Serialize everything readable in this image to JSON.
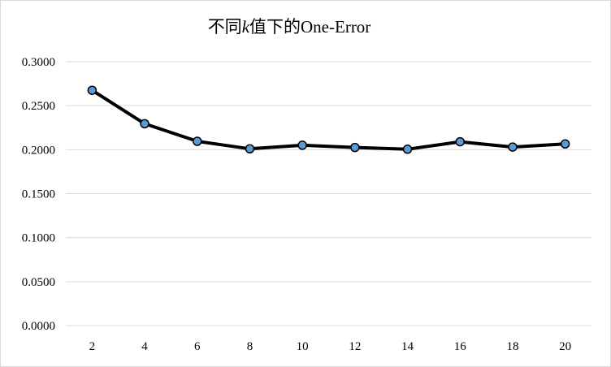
{
  "chart_data": {
    "type": "line",
    "title_parts": {
      "pre": "不同",
      "k": "k",
      "post": "值下的One-Error"
    },
    "title": "不同k值下的One-Error",
    "xlabel": "",
    "ylabel": "",
    "categories": [
      "2",
      "4",
      "6",
      "8",
      "10",
      "12",
      "14",
      "16",
      "18",
      "20"
    ],
    "series": [
      {
        "values": [
          0.2675,
          0.2295,
          0.2095,
          0.201,
          0.205,
          0.2025,
          0.2005,
          0.209,
          0.203,
          0.2065
        ]
      }
    ],
    "yticks": [
      "0.0000",
      "0.0500",
      "0.1000",
      "0.1500",
      "0.2000",
      "0.2500",
      "0.3000"
    ],
    "ylim": [
      0,
      0.3
    ],
    "grid": true,
    "legend": "none",
    "colors": {
      "line": "#000000",
      "marker_fill": "#5b9bd5",
      "grid": "#d9d9d9"
    }
  }
}
